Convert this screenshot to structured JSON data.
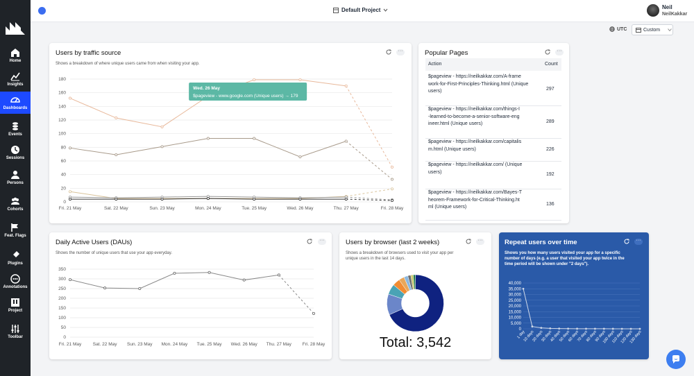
{
  "nav": [
    {
      "label": "Home",
      "icon": "home-icon"
    },
    {
      "label": "Insights",
      "icon": "insights-icon"
    },
    {
      "label": "Dashboards",
      "icon": "dashboards-icon"
    },
    {
      "label": "Events",
      "icon": "events-icon"
    },
    {
      "label": "Sessions",
      "icon": "sessions-icon"
    },
    {
      "label": "Persons",
      "icon": "persons-icon"
    },
    {
      "label": "Cohorts",
      "icon": "cohorts-icon"
    },
    {
      "label": "Feat. Flags",
      "icon": "flag-icon"
    },
    {
      "label": "Plugins",
      "icon": "plugins-icon"
    },
    {
      "label": "Annotations",
      "icon": "annotations-icon"
    },
    {
      "label": "Project",
      "icon": "project-icon"
    },
    {
      "label": "Toolbar",
      "icon": "toolbar-icon"
    }
  ],
  "header": {
    "project": "Default Project",
    "user_name": "Neil",
    "user_login": "NeilKakkar"
  },
  "controls": {
    "timezone": "UTC",
    "date_range": "Custom"
  },
  "colors": {
    "accent": "#1d4aff",
    "repeat_bg": "#2a5aa8",
    "tooltip": "#5cb8a5"
  },
  "traffic": {
    "title": "Users by traffic source",
    "subtitle": "Shows a breakdown of where unique users came from when visiting your app.",
    "tooltip_date": "Wed. 26 May",
    "tooltip_text": "$pageview - www.google.com (Unique users) → 179"
  },
  "popular": {
    "title": "Popular Pages",
    "col_action": "Action",
    "col_count": "Count",
    "rows": [
      {
        "l1": "$pageview - https://neilkakkar.com/A-frame",
        "l2": "work-for-First-Principles-Thinking.html (Unique",
        "l3": "users)",
        "count": "297"
      },
      {
        "l1": "$pageview - https://neilkakkar.com/things-I",
        "l2": "-learned-to-become-a-senior-software-eng",
        "l3": "ineer.html (Unique users)",
        "count": "289"
      },
      {
        "l1": "$pageview - https://neilkakkar.com/capitalis",
        "l2": "m.html (Unique users)",
        "l3": "",
        "count": "226"
      },
      {
        "l1": "$pageview - https://neilkakkar.com/ (Unique",
        "l2": "users)",
        "l3": "",
        "count": "192"
      },
      {
        "l1": "$pageview - https://neilkakkar.com/Bayes-T",
        "l2": "heorem-Framework-for-Critical-Thinking.ht",
        "l3": "ml (Unique users)",
        "count": "136"
      }
    ]
  },
  "dau": {
    "title": "Daily Active Users (DAUs)",
    "subtitle": "Shows the number of unique users that use your app everyday."
  },
  "browser": {
    "title": "Users by browser (last 2 weeks)",
    "subtitle_l1": "Shows a breakdown of browsers used to visit your app per",
    "subtitle_l2": "unique users in the last 14 days.",
    "total": "Total: 3,542"
  },
  "repeat": {
    "title": "Repeat users over time",
    "subtitle_l1": "Shows you how many users visited your app for a specific",
    "subtitle_l2": "number of days (e.g. a user that visited your app twice in the",
    "subtitle_l3": "time period will be shown under \"2 days\")."
  },
  "chart_data": [
    {
      "type": "line",
      "title": "Users by traffic source",
      "categories": [
        "Fri. 21 May",
        "Sat. 22 May",
        "Sun. 23 May",
        "Mon. 24 May",
        "Tue. 25 May",
        "Wed. 26 May",
        "Thu. 27 May",
        "Fri. 28 May"
      ],
      "ylim": [
        0,
        180
      ],
      "yticks": [
        0,
        20,
        40,
        60,
        80,
        100,
        120,
        140,
        160,
        180
      ],
      "series": [
        {
          "color": "#e8b89a",
          "values": [
            152,
            123,
            110,
            155,
            179,
            179,
            170,
            51
          ]
        },
        {
          "color": "#a89a8a",
          "values": [
            79,
            69,
            81,
            93,
            93,
            66,
            89,
            33
          ]
        },
        {
          "color": "#d9c39a",
          "values": [
            15,
            5,
            5,
            5,
            5,
            5,
            8,
            19
          ]
        },
        {
          "color": "#999999",
          "values": [
            7,
            6,
            7,
            8,
            7,
            6,
            7,
            3
          ]
        },
        {
          "color": "#333333",
          "values": [
            4,
            4,
            4,
            5,
            4,
            4,
            4,
            2
          ]
        }
      ]
    },
    {
      "type": "line",
      "title": "Daily Active Users (DAUs)",
      "categories": [
        "Fri. 21 May",
        "Sat. 22 May",
        "Sun. 23 May",
        "Mon. 24 May",
        "Tue. 25 May",
        "Wed. 26 May",
        "Thu. 27 May",
        "Fri. 28 May"
      ],
      "ylim": [
        0,
        350
      ],
      "yticks": [
        0,
        50,
        100,
        150,
        200,
        250,
        300,
        350
      ],
      "values": [
        296,
        253,
        250,
        329,
        333,
        294,
        320,
        122
      ]
    },
    {
      "type": "pie",
      "title": "Users by browser (last 2 weeks)",
      "values": [
        2420,
        420,
        210,
        150,
        110,
        80,
        60,
        50,
        42
      ],
      "colors": [
        "#0f2280",
        "#6b86c9",
        "#4aa3b5",
        "#f28c33",
        "#e9a75a",
        "#8bb8e0",
        "#6f6f6f",
        "#c8c86a",
        "#1f7a4a"
      ]
    },
    {
      "type": "line",
      "title": "Repeat users over time",
      "ylim": [
        0,
        40000
      ],
      "yticks": [
        "0",
        "5,000",
        "10,000",
        "15,000",
        "20,000",
        "25,000",
        "30,000",
        "35,000",
        "40,000"
      ],
      "categories": [
        "1 day",
        "10 days",
        "20 days",
        "30 days",
        "40 days",
        "50 days",
        "60 days",
        "70 days",
        "80 days",
        "90 days",
        "100 days",
        "110 days",
        "120 days",
        "130 days"
      ],
      "values": [
        35000,
        2000,
        800,
        400,
        250,
        150,
        100,
        80,
        60,
        40,
        30,
        20,
        15,
        10
      ]
    }
  ]
}
